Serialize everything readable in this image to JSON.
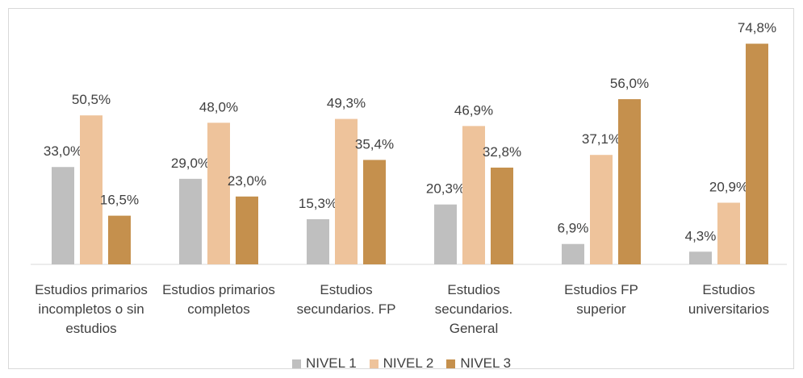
{
  "chart_data": {
    "type": "bar",
    "categories": [
      "Estudios primarios incompletos o sin estudios",
      "Estudios primarios completos",
      "Estudios secundarios. FP",
      "Estudios secundarios. General",
      "Estudios FP superior",
      "Estudios universitarios"
    ],
    "series": [
      {
        "name": "NIVEL 1",
        "color": "#bfbfbf",
        "values": [
          33.0,
          29.0,
          15.3,
          20.3,
          6.9,
          4.3
        ],
        "value_labels": [
          "33,0%",
          "29,0%",
          "15,3%",
          "20,3%",
          "6,9%",
          "4,3%"
        ]
      },
      {
        "name": "NIVEL 2",
        "color": "#eec39b",
        "values": [
          50.5,
          48.0,
          49.3,
          46.9,
          37.1,
          20.9
        ],
        "value_labels": [
          "50,5%",
          "48,0%",
          "49,3%",
          "46,9%",
          "37,1%",
          "20,9%"
        ]
      },
      {
        "name": "NIVEL 3",
        "color": "#c5904d",
        "values": [
          16.5,
          23.0,
          35.4,
          32.8,
          56.0,
          74.8
        ],
        "value_labels": [
          "16,5%",
          "23,0%",
          "35,4%",
          "32,8%",
          "56,0%",
          "74,8%"
        ]
      }
    ]
  }
}
